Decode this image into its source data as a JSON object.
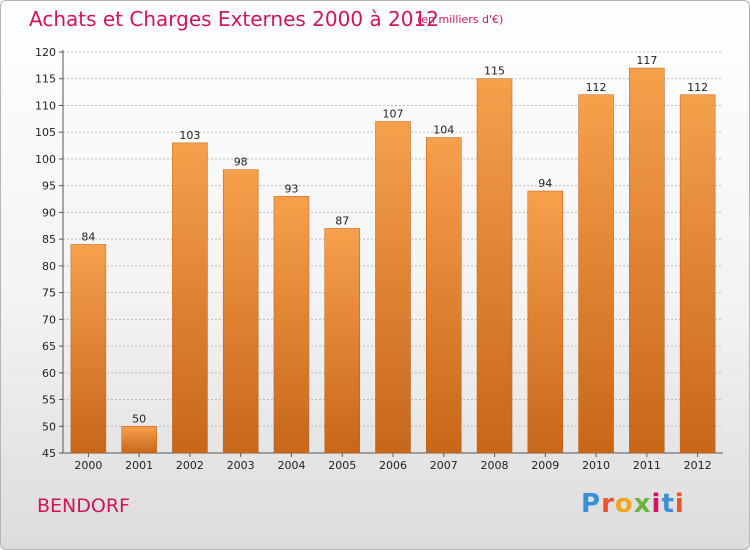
{
  "header": {
    "title": "Achats et Charges Externes 2000 à 2012",
    "subtitle": "(en milliers d'€)"
  },
  "footer": {
    "commune": "BENDORF",
    "logo_text": "Proxiti"
  },
  "colors": {
    "title": "#d2145a",
    "bar_top": "#f6a04c",
    "bar_bottom": "#c8661a",
    "grid": "#bcbcbc"
  },
  "chart_data": {
    "type": "bar",
    "categories": [
      "2000",
      "2001",
      "2002",
      "2003",
      "2004",
      "2005",
      "2006",
      "2007",
      "2008",
      "2009",
      "2010",
      "2011",
      "2012"
    ],
    "values": [
      84,
      50,
      103,
      98,
      93,
      87,
      107,
      104,
      115,
      94,
      112,
      117,
      112
    ],
    "ylim": [
      45,
      120
    ],
    "yticks": [
      45,
      50,
      55,
      60,
      65,
      70,
      75,
      80,
      85,
      90,
      95,
      100,
      105,
      110,
      115,
      120
    ],
    "grid": true,
    "data_labels": true
  }
}
